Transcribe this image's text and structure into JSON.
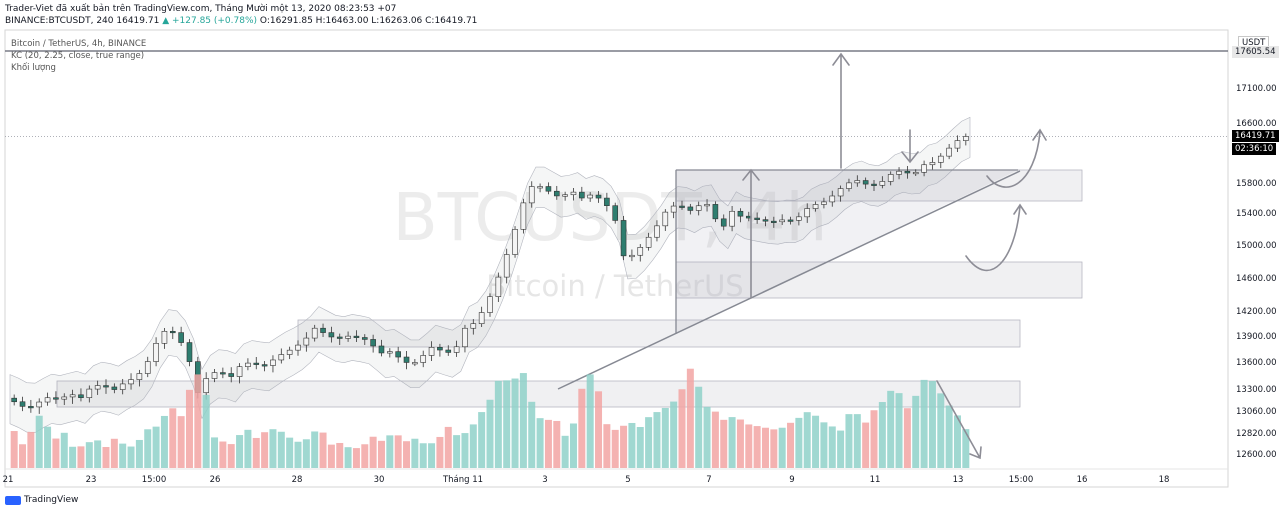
{
  "header": {
    "line1": "Trader-Viet đã xuất bản trên TradingView.com, Tháng Mười một 13, 2020 08:23:53 +07",
    "line2_prefix": "BINANCE:BTCUSDT, 240 16419.71",
    "line2_change": "▲ +127.85 (+0.78%)",
    "line2_ohlc": "O:16291.85 H:16463.00 L:16263.06 C:16419.71"
  },
  "legend": {
    "symbol": "Bitcoin / TetherUS, 4h, BINANCE",
    "indicator": "KC (20, 2.25, close, true range)",
    "volume": "Khối lượng"
  },
  "watermark": {
    "symbol": "BTCUSDT, 4h",
    "name": "Bitcoin / TetherUS"
  },
  "badges": {
    "currency": "USDT",
    "level": "17605.54",
    "last_price": "16419.71",
    "countdown": "02:36:10"
  },
  "brand": "TradingView",
  "colors": {
    "up": "#26a69a",
    "down": "#ef5350",
    "vol_up": "#8fd1c9",
    "vol_down": "#f2a5a3",
    "zone": "#c8c8d2",
    "arrow": "#8d8d96"
  },
  "chart_data": {
    "type": "candlestick",
    "y_axis": {
      "ticks": [
        17100,
        16600,
        15800,
        15400,
        15000,
        14600,
        14200,
        13900,
        13600,
        13300,
        13060,
        12820,
        12600
      ],
      "labels": [
        "17100.00",
        "16600.00",
        "15800.00",
        "15400.00",
        "15000.00",
        "14600.00",
        "14200.00",
        "13900.00",
        "13600.00",
        "13300.00",
        "13060.00",
        "12820.00",
        "12600.00"
      ]
    },
    "x_axis": {
      "ticks": [
        "21",
        "23",
        "15:00",
        "26",
        "28",
        "30",
        "Tháng 11",
        "3",
        "5",
        "7",
        "9",
        "11",
        "13",
        "15:00",
        "16",
        "18"
      ]
    },
    "horizontal_level": 17605.54,
    "last_price": 16419.71,
    "price_path": [
      [
        0,
        13200
      ],
      [
        10,
        13150
      ],
      [
        20,
        13080
      ],
      [
        30,
        13150
      ],
      [
        40,
        13210
      ],
      [
        50,
        13180
      ],
      [
        60,
        13250
      ],
      [
        70,
        13200
      ],
      [
        80,
        13320
      ],
      [
        90,
        13350
      ],
      [
        100,
        13280
      ],
      [
        110,
        13360
      ],
      [
        120,
        13420
      ],
      [
        130,
        13520
      ],
      [
        140,
        13800
      ],
      [
        150,
        13980
      ],
      [
        160,
        13920
      ],
      [
        170,
        13700
      ],
      [
        180,
        13260
      ],
      [
        190,
        13460
      ],
      [
        200,
        13500
      ],
      [
        210,
        13420
      ],
      [
        220,
        13560
      ],
      [
        230,
        13600
      ],
      [
        240,
        13540
      ],
      [
        250,
        13620
      ],
      [
        260,
        13700
      ],
      [
        270,
        13760
      ],
      [
        280,
        13850
      ],
      [
        290,
        14000
      ],
      [
        300,
        13920
      ],
      [
        310,
        13860
      ],
      [
        320,
        13900
      ],
      [
        330,
        13880
      ],
      [
        340,
        13850
      ],
      [
        350,
        13700
      ],
      [
        360,
        13720
      ],
      [
        370,
        13640
      ],
      [
        380,
        13560
      ],
      [
        390,
        13660
      ],
      [
        400,
        13780
      ],
      [
        410,
        13720
      ],
      [
        420,
        13700
      ],
      [
        430,
        13990
      ],
      [
        440,
        14060
      ],
      [
        450,
        14260
      ],
      [
        460,
        14550
      ],
      [
        470,
        14900
      ],
      [
        480,
        15300
      ],
      [
        490,
        15750
      ],
      [
        500,
        15760
      ],
      [
        510,
        15680
      ],
      [
        520,
        15600
      ],
      [
        530,
        15700
      ],
      [
        540,
        15600
      ],
      [
        550,
        15650
      ],
      [
        560,
        15560
      ],
      [
        570,
        15380
      ],
      [
        580,
        14820
      ],
      [
        590,
        14900
      ],
      [
        600,
        15050
      ],
      [
        610,
        15230
      ],
      [
        620,
        15450
      ],
      [
        630,
        15520
      ],
      [
        640,
        15420
      ],
      [
        650,
        15500
      ],
      [
        660,
        15520
      ],
      [
        670,
        15150
      ],
      [
        680,
        15430
      ],
      [
        690,
        15350
      ],
      [
        700,
        15330
      ],
      [
        710,
        15300
      ],
      [
        720,
        15290
      ],
      [
        730,
        15320
      ],
      [
        740,
        15300
      ],
      [
        750,
        15450
      ],
      [
        760,
        15520
      ],
      [
        770,
        15560
      ],
      [
        780,
        15700
      ],
      [
        790,
        15800
      ],
      [
        800,
        15840
      ],
      [
        810,
        15750
      ],
      [
        820,
        15800
      ],
      [
        830,
        15920
      ],
      [
        840,
        15970
      ],
      [
        850,
        15900
      ],
      [
        860,
        16040
      ],
      [
        870,
        16080
      ],
      [
        880,
        16200
      ],
      [
        890,
        16350
      ],
      [
        900,
        16420
      ]
    ],
    "volume_path": [
      [
        0,
        45
      ],
      [
        10,
        20
      ],
      [
        20,
        35
      ],
      [
        30,
        55
      ],
      [
        40,
        25
      ],
      [
        50,
        35
      ],
      [
        60,
        18
      ],
      [
        70,
        22
      ],
      [
        80,
        28
      ],
      [
        90,
        20
      ],
      [
        100,
        30
      ],
      [
        110,
        18
      ],
      [
        120,
        25
      ],
      [
        130,
        38
      ],
      [
        140,
        40
      ],
      [
        150,
        60
      ],
      [
        160,
        48
      ],
      [
        170,
        80
      ],
      [
        180,
        95
      ],
      [
        190,
        30
      ],
      [
        200,
        25
      ],
      [
        210,
        22
      ],
      [
        220,
        40
      ],
      [
        230,
        28
      ],
      [
        240,
        35
      ],
      [
        250,
        38
      ],
      [
        260,
        30
      ],
      [
        270,
        25
      ],
      [
        280,
        28
      ],
      [
        290,
        40
      ],
      [
        300,
        22
      ],
      [
        310,
        24
      ],
      [
        320,
        18
      ],
      [
        330,
        20
      ],
      [
        340,
        30
      ],
      [
        350,
        25
      ],
      [
        360,
        35
      ],
      [
        370,
        25
      ],
      [
        380,
        28
      ],
      [
        390,
        22
      ],
      [
        400,
        25
      ],
      [
        410,
        40
      ],
      [
        420,
        30
      ],
      [
        430,
        35
      ],
      [
        440,
        50
      ],
      [
        450,
        65
      ],
      [
        460,
        88
      ],
      [
        470,
        80
      ],
      [
        480,
        95
      ],
      [
        490,
        60
      ],
      [
        500,
        42
      ],
      [
        510,
        50
      ],
      [
        520,
        30
      ],
      [
        530,
        45
      ],
      [
        540,
        95
      ],
      [
        550,
        80
      ],
      [
        560,
        40
      ],
      [
        570,
        35
      ],
      [
        580,
        45
      ],
      [
        590,
        38
      ],
      [
        600,
        50
      ],
      [
        610,
        55
      ],
      [
        620,
        60
      ],
      [
        630,
        75
      ],
      [
        640,
        100
      ],
      [
        650,
        60
      ],
      [
        660,
        55
      ],
      [
        670,
        45
      ],
      [
        680,
        50
      ],
      [
        690,
        42
      ],
      [
        700,
        40
      ],
      [
        710,
        38
      ],
      [
        720,
        36
      ],
      [
        730,
        42
      ],
      [
        740,
        48
      ],
      [
        750,
        55
      ],
      [
        760,
        45
      ],
      [
        770,
        40
      ],
      [
        780,
        35
      ],
      [
        790,
        60
      ],
      [
        800,
        40
      ],
      [
        810,
        55
      ],
      [
        820,
        65
      ],
      [
        830,
        80
      ],
      [
        840,
        55
      ],
      [
        850,
        70
      ],
      [
        860,
        90
      ],
      [
        870,
        75
      ],
      [
        880,
        60
      ],
      [
        890,
        48
      ],
      [
        900,
        30
      ]
    ]
  }
}
